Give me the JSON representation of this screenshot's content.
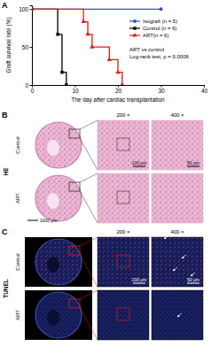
{
  "chart_data": {
    "type": "line",
    "panel": "A",
    "x_label": "The day after cardiac transplantation",
    "y_label": "Graft survival rate (%)",
    "xlim": [
      0,
      40
    ],
    "xticks": [
      0,
      10,
      20,
      30,
      40
    ],
    "ylim": [
      0,
      105
    ],
    "yticks": [
      0,
      50,
      100
    ],
    "line_style": "step",
    "legend": "upper right",
    "annotations": [
      "ART vs control",
      "Log-rank test, p = 0.0006"
    ],
    "series": [
      {
        "name": "Isograft (n = 5)",
        "color": "#2f4fd8",
        "marker": "circle",
        "x": [
          0,
          30
        ],
        "values": [
          100,
          100
        ]
      },
      {
        "name": "Control (n = 6)",
        "color": "#000000",
        "marker": "square",
        "x": [
          0,
          6,
          7,
          8
        ],
        "values": [
          100,
          66.7,
          16.7,
          0
        ]
      },
      {
        "name": "ART(n = 6)",
        "color": "#e41a1c",
        "marker": "triangle",
        "x": [
          0,
          12,
          13,
          14,
          18,
          20,
          21
        ],
        "values": [
          100,
          83.3,
          66.7,
          50,
          33.3,
          16.7,
          0
        ]
      }
    ]
  },
  "histology": [
    {
      "panel": "B",
      "stain": "HE",
      "magnifications": [
        "200 ×",
        "400 ×"
      ],
      "groups": [
        "Control",
        "ART"
      ],
      "scale_bars": [
        "100 μm",
        "50 μm"
      ],
      "overview_scale_bar": "1000 μm"
    },
    {
      "panel": "C",
      "stain": "TUNEL",
      "magnifications": [
        "200 ×",
        "400 ×"
      ],
      "groups": [
        "Control",
        "ART"
      ],
      "scale_bars": [
        "100 μm",
        "50 μm"
      ]
    }
  ]
}
